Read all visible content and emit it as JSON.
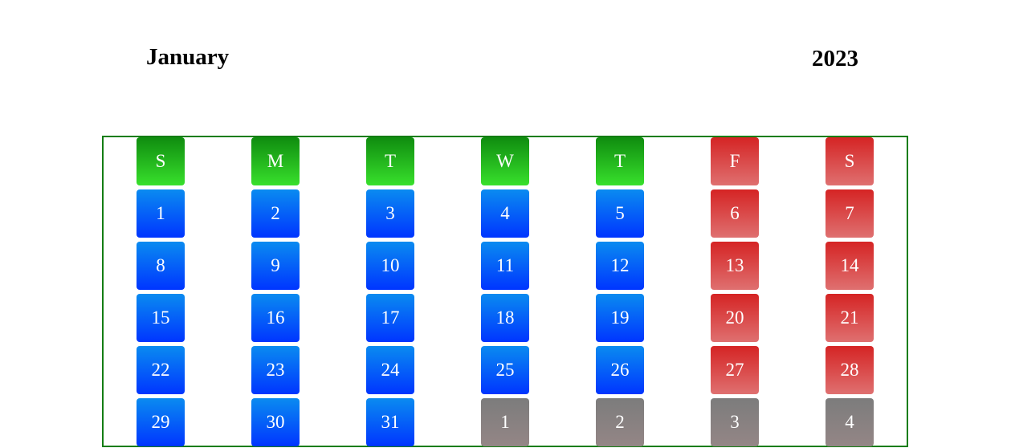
{
  "header": {
    "month": "January",
    "year": "2023"
  },
  "colors": {
    "weekday_header": "#1cb31c",
    "weekday_cell": "#0a6cf6",
    "weekend_cell": "#d84545",
    "other_month_cell": "#888080",
    "frame_border": "#137d13"
  },
  "weekdays": [
    {
      "label": "S",
      "weekend": false
    },
    {
      "label": "M",
      "weekend": false
    },
    {
      "label": "T",
      "weekend": false
    },
    {
      "label": "W",
      "weekend": false
    },
    {
      "label": "T",
      "weekend": false
    },
    {
      "label": "F",
      "weekend": true
    },
    {
      "label": "S",
      "weekend": true
    }
  ],
  "weeks": [
    [
      {
        "d": "1"
      },
      {
        "d": "2"
      },
      {
        "d": "3"
      },
      {
        "d": "4"
      },
      {
        "d": "5"
      },
      {
        "d": "6"
      },
      {
        "d": "7"
      }
    ],
    [
      {
        "d": "8"
      },
      {
        "d": "9"
      },
      {
        "d": "10"
      },
      {
        "d": "11"
      },
      {
        "d": "12"
      },
      {
        "d": "13"
      },
      {
        "d": "14"
      }
    ],
    [
      {
        "d": "15"
      },
      {
        "d": "16"
      },
      {
        "d": "17"
      },
      {
        "d": "18"
      },
      {
        "d": "19"
      },
      {
        "d": "20"
      },
      {
        "d": "21"
      }
    ],
    [
      {
        "d": "22"
      },
      {
        "d": "23"
      },
      {
        "d": "24"
      },
      {
        "d": "25"
      },
      {
        "d": "26"
      },
      {
        "d": "27"
      },
      {
        "d": "28"
      }
    ],
    [
      {
        "d": "29"
      },
      {
        "d": "30"
      },
      {
        "d": "31"
      },
      {
        "d": "1",
        "other": true
      },
      {
        "d": "2",
        "other": true
      },
      {
        "d": "3",
        "other": true
      },
      {
        "d": "4",
        "other": true
      }
    ]
  ]
}
